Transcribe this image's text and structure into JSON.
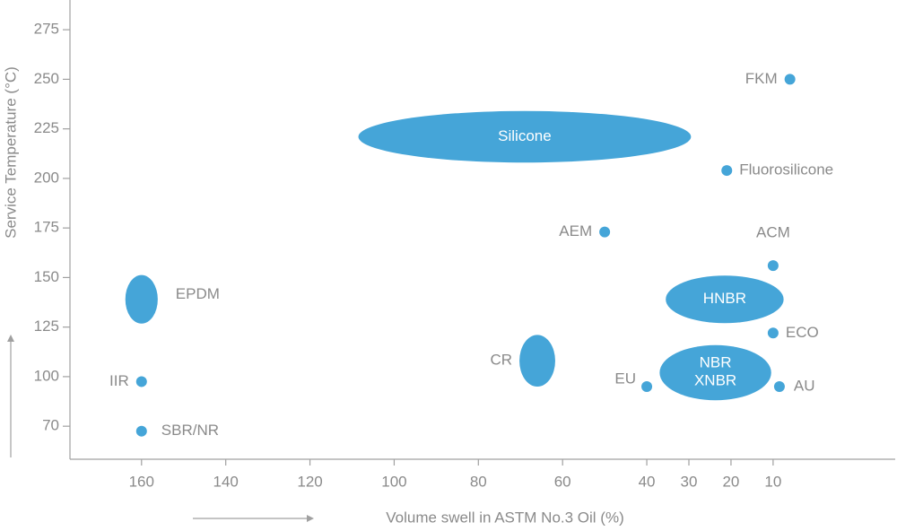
{
  "chart_data": {
    "type": "scatter",
    "x_label": "Volume swell in ASTM No.3 Oil (%)",
    "y_label": "Service Temperature (°C)",
    "color": "#45a5d8",
    "xlim": [
      177,
      -19
    ],
    "xticks": [
      160,
      140,
      120,
      100,
      80,
      60,
      40,
      30,
      20,
      10
    ],
    "ylim": [
      50,
      290
    ],
    "yticks": [
      70,
      100,
      125,
      150,
      175,
      200,
      225,
      250,
      275
    ],
    "items": [
      {
        "label": "FKM",
        "x": 6,
        "y": 250
      },
      {
        "label": "Silicone",
        "x": 69,
        "y": 221,
        "w": 79,
        "h": 26
      },
      {
        "label": "Fluorosilicone",
        "x": 21,
        "y": 204
      },
      {
        "label": "AEM",
        "x": 50,
        "y": 173
      },
      {
        "label": "ACM",
        "x": 10,
        "y": 156
      },
      {
        "label": "HNBR",
        "x": 21.5,
        "y": 139,
        "w": 28,
        "h": 24
      },
      {
        "label": "EPDM",
        "x": 160,
        "y": 139,
        "w": 7.7,
        "h": 24.5
      },
      {
        "label": "ECO",
        "x": 10,
        "y": 122
      },
      {
        "label": "CR",
        "x": 66,
        "y": 108,
        "w": 8.5,
        "h": 27
      },
      {
        "label": "NBR\nXNBR",
        "x": 23.7,
        "y": 102,
        "w": 26.5,
        "h": 30
      },
      {
        "label": "IIR",
        "x": 160,
        "y": 97
      },
      {
        "label": "EU",
        "x": 40,
        "y": 94
      },
      {
        "label": "AU",
        "x": 8.5,
        "y": 94
      },
      {
        "label": "SBR/NR",
        "x": 160,
        "y": 67
      }
    ]
  }
}
